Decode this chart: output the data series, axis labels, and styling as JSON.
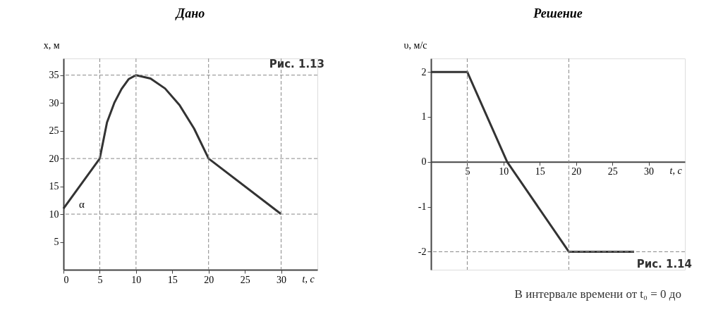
{
  "chart_data": [
    {
      "type": "line",
      "title": "Дано",
      "xlabel": "t, с",
      "ylabel": "x, м",
      "series": [
        {
          "color": "#333333",
          "x": [
            0,
            5,
            6,
            7,
            8,
            9,
            10,
            12,
            14,
            16,
            18,
            20,
            30
          ],
          "values": [
            11,
            20,
            26.5,
            30,
            32.5,
            34.3,
            35,
            34.4,
            32.6,
            29.6,
            25.4,
            20,
            10
          ]
        }
      ],
      "xlim": [
        0,
        35
      ],
      "ylim": [
        0,
        38
      ],
      "xticks": [
        0,
        5,
        10,
        15,
        20,
        25,
        30
      ],
      "yticks": [
        5,
        10,
        15,
        20,
        25,
        30,
        35
      ],
      "ref_lines": [
        {
          "axis": "x",
          "value": 5,
          "line_style": "dashed"
        },
        {
          "axis": "x",
          "value": 10,
          "line_style": "dashed"
        },
        {
          "axis": "x",
          "value": 20,
          "line_style": "dashed"
        },
        {
          "axis": "x",
          "value": 30,
          "line_style": "dashed"
        },
        {
          "axis": "y",
          "value": 10,
          "line_style": "dashed"
        },
        {
          "axis": "y",
          "value": 20,
          "line_style": "dashed"
        },
        {
          "axis": "y",
          "value": 35,
          "line_style": "dashed"
        }
      ],
      "annotations": [
        {
          "text": "α",
          "x": 0,
          "y": 11
        },
        "Рис. 1.13"
      ],
      "grid": false,
      "line_style": "solid"
    },
    {
      "type": "line",
      "title": "Решение",
      "xlabel": "t, с",
      "ylabel": "υ, м/с",
      "series": [
        {
          "color": "#333333",
          "x": [
            0,
            5,
            10.5,
            19,
            28
          ],
          "values": [
            2,
            2,
            0,
            -2,
            -2
          ]
        }
      ],
      "xlim": [
        0,
        35
      ],
      "ylim": [
        -2.4,
        2.3
      ],
      "xticks": [
        5,
        10,
        15,
        20,
        25,
        30
      ],
      "yticks": [
        -2,
        -1,
        0,
        1,
        2
      ],
      "ref_lines": [
        {
          "axis": "x",
          "value": 5,
          "line_style": "dashed"
        },
        {
          "axis": "x",
          "value": 19,
          "line_style": "dashed"
        },
        {
          "axis": "y",
          "value": -2,
          "line_style": "dashed"
        }
      ],
      "annotations": [
        "Рис. 1.14",
        "В интервале времени от t₀ = 0 до"
      ],
      "grid": false,
      "line_style": "solid"
    }
  ]
}
